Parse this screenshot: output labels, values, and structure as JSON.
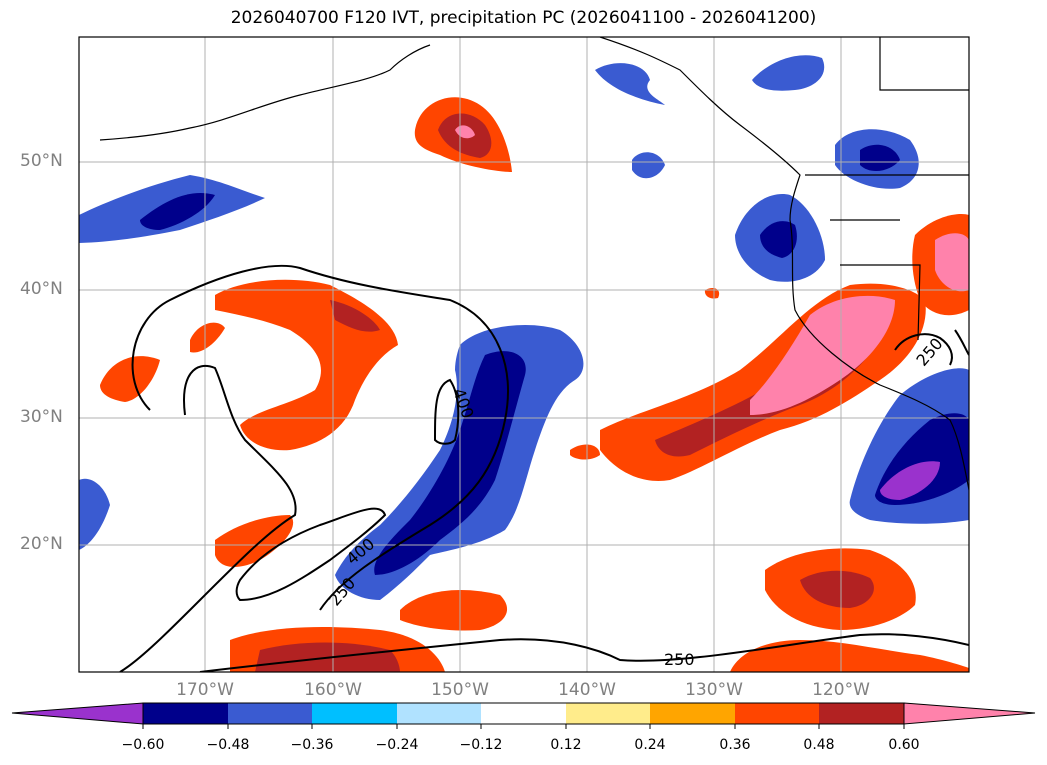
{
  "title": "2026040700 F120 IVT, precipitation PC (2026041100 - 2026041200)",
  "map": {
    "lat_ticks": [
      "50°N",
      "40°N",
      "30°N",
      "20°N"
    ],
    "lon_ticks": [
      "170°W",
      "160°W",
      "150°W",
      "140°W",
      "130°W",
      "120°W"
    ],
    "ivt_contour_labels": [
      "400",
      "400",
      "250",
      "250",
      "250"
    ]
  },
  "colorbar": {
    "colors": [
      "#9a32cd",
      "#00008b",
      "#3a5bd1",
      "#00bfff",
      "#b0e2ff",
      "#ffffff",
      "#ffec8b",
      "#ffa500",
      "#ff4500",
      "#b22222",
      "#ff82ab"
    ],
    "tick_labels": [
      "−0.60",
      "−0.48",
      "−0.36",
      "−0.24",
      "−0.12",
      "0.12",
      "0.24",
      "0.36",
      "0.48",
      "0.60"
    ]
  }
}
